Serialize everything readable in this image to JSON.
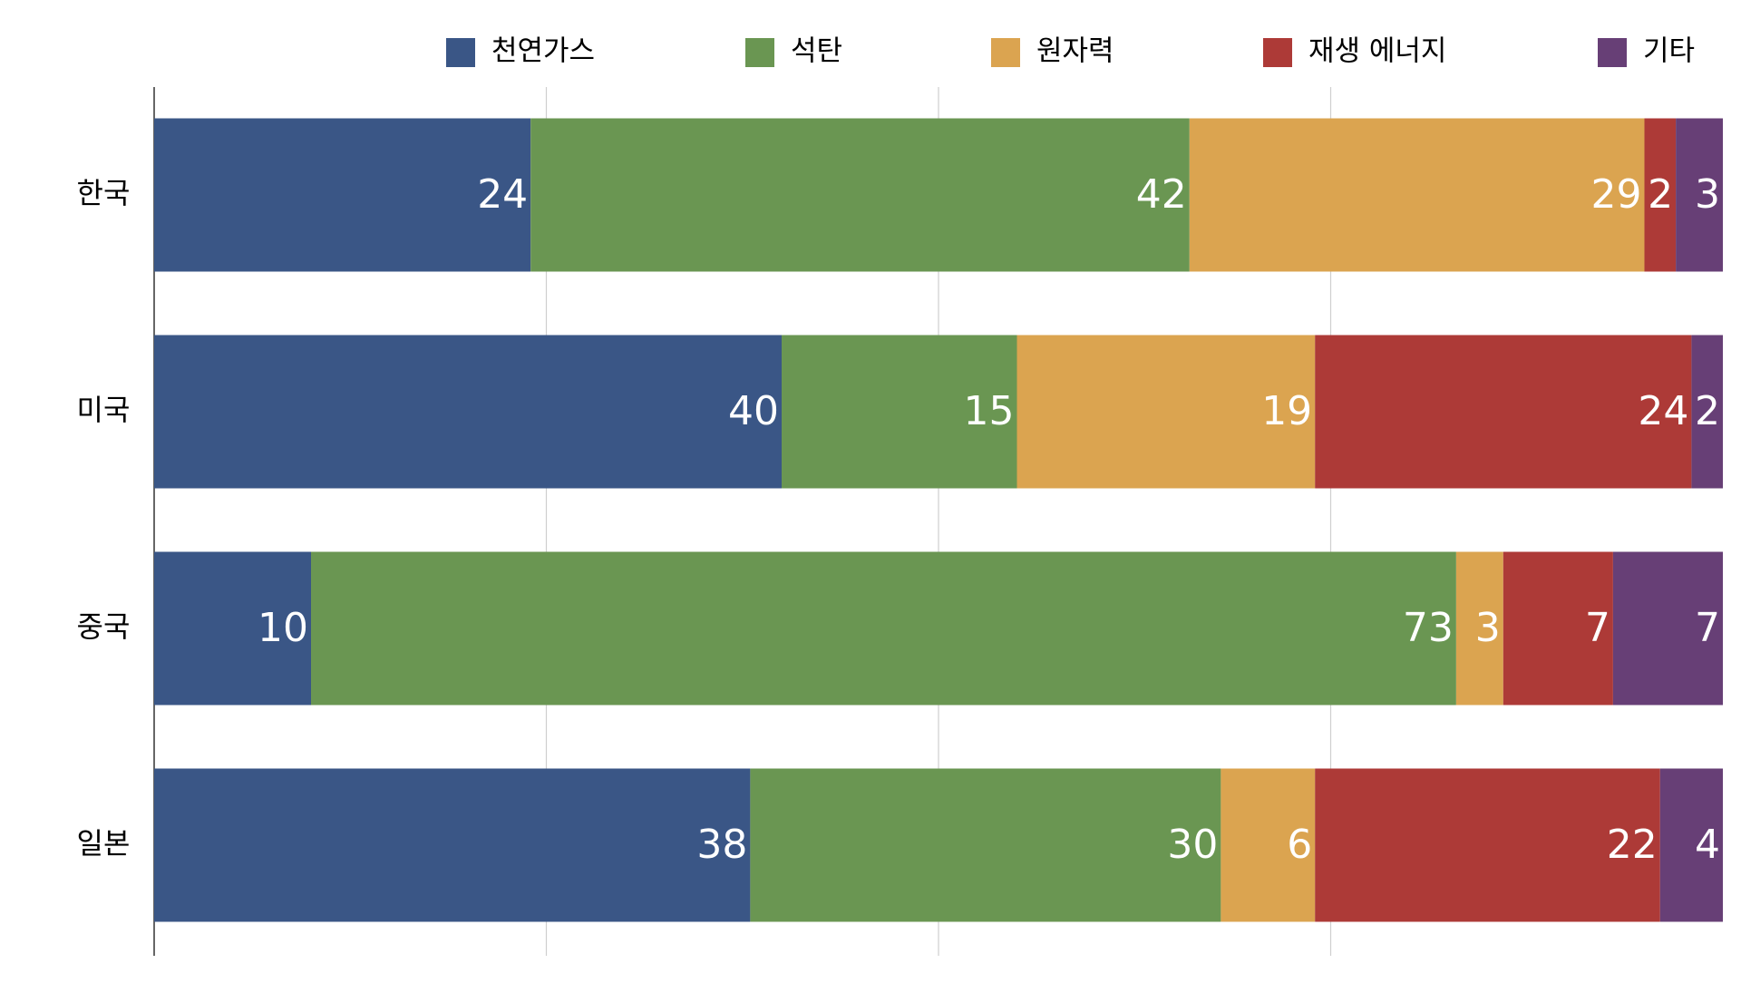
{
  "chart_data": {
    "type": "stacked-barh",
    "categories": [
      "한국",
      "미국",
      "중국",
      "일본"
    ],
    "series": [
      {
        "name": "천연가스",
        "color": "#3a5686",
        "values": [
          24,
          40,
          10,
          38
        ]
      },
      {
        "name": "석탄",
        "color": "#6a9652",
        "values": [
          42,
          15,
          73,
          30
        ]
      },
      {
        "name": "원자력",
        "color": "#dba450",
        "values": [
          29,
          19,
          3,
          6
        ]
      },
      {
        "name": "재생 에너지",
        "color": "#ad3a37",
        "values": [
          2,
          24,
          7,
          22
        ]
      },
      {
        "name": "기타",
        "color": "#673f76",
        "values": [
          3,
          2,
          7,
          4
        ]
      }
    ],
    "xlim": [
      0,
      100
    ],
    "xticks": [
      25,
      50,
      75
    ],
    "grid": true,
    "legend": "top"
  }
}
